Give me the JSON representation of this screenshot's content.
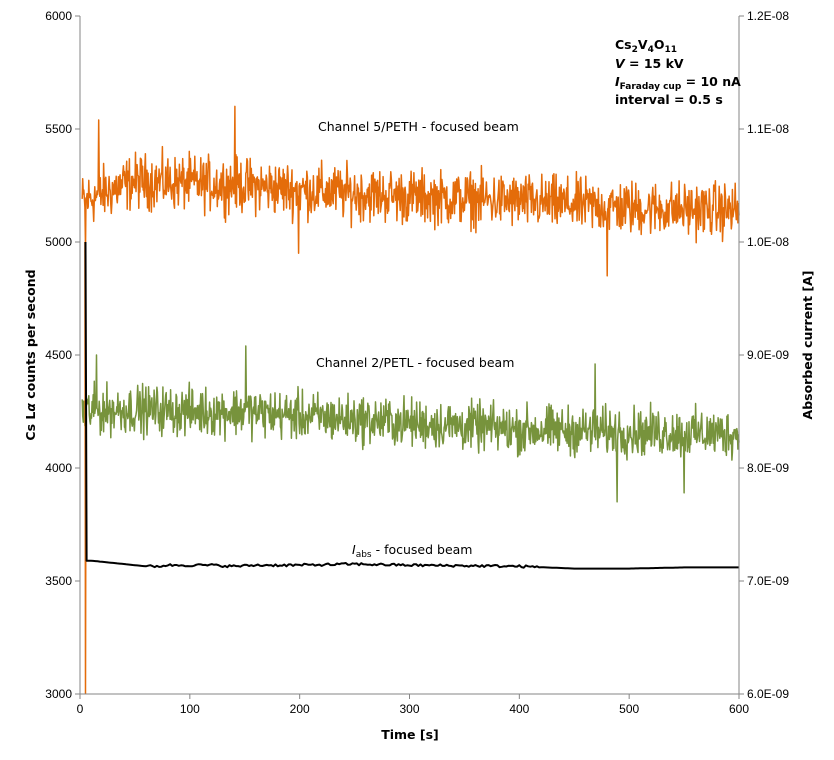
{
  "chart_data": {
    "type": "line",
    "title": "",
    "xlabel": "Time [s]",
    "ylabel_left_prefix": "Cs L",
    "ylabel_left_alpha": "α",
    "ylabel_left_suffix": " counts per second",
    "ylabel_right": "Absorbed current [A]",
    "xlim": [
      0,
      600
    ],
    "ylim_left": [
      3000,
      6000
    ],
    "ylim_right": [
      6e-09,
      1.2e-08
    ],
    "x_ticks": [
      "0",
      "100",
      "200",
      "300",
      "400",
      "500",
      "600"
    ],
    "y_left_ticks": [
      "3000",
      "3500",
      "4000",
      "4500",
      "5000",
      "5500",
      "6000"
    ],
    "y_right_ticks": [
      "6.0E-09",
      "7.0E-09",
      "8.0E-09",
      "9.0E-09",
      "1.0E-08",
      "1.1E-08",
      "1.2E-08"
    ],
    "grid": false,
    "info_box": {
      "compound_base": "Cs",
      "compound_sub1": "2",
      "compound_mid": "V",
      "compound_sub2": "4",
      "compound_o": "O",
      "compound_sub3": "11",
      "voltage_var": "V",
      "voltage_rest": " = 15 kV",
      "current_var": "I",
      "current_sub": "Faraday cup",
      "current_rest": " = 10 nA",
      "interval": "interval = 0.5 s"
    },
    "series": [
      {
        "name": "Channel 5/PETH - focused beam",
        "axis": "left",
        "color": "#e46c0a",
        "trend": [
          [
            2,
            5180
          ],
          [
            50,
            5270
          ],
          [
            100,
            5260
          ],
          [
            150,
            5250
          ],
          [
            200,
            5230
          ],
          [
            300,
            5200
          ],
          [
            400,
            5180
          ],
          [
            500,
            5150
          ],
          [
            600,
            5140
          ]
        ],
        "noise_amplitude": 90,
        "spikes": [
          [
            5,
            4970
          ],
          [
            17,
            5540
          ],
          [
            141,
            5600
          ],
          [
            199,
            4950
          ],
          [
            480,
            4850
          ]
        ]
      },
      {
        "name": "Channel 2/PETL - focused beam",
        "axis": "left",
        "color": "#77933c",
        "trend": [
          [
            2,
            4250
          ],
          [
            50,
            4260
          ],
          [
            100,
            4250
          ],
          [
            150,
            4250
          ],
          [
            200,
            4230
          ],
          [
            300,
            4200
          ],
          [
            400,
            4170
          ],
          [
            500,
            4160
          ],
          [
            600,
            4150
          ]
        ],
        "noise_amplitude": 80,
        "spikes": [
          [
            15,
            4500
          ],
          [
            151,
            4540
          ],
          [
            469,
            4460
          ],
          [
            489,
            3850
          ],
          [
            550,
            3890
          ]
        ]
      },
      {
        "name_prefix": "I",
        "name_sub": "abs",
        "name_suffix": " - focused beam",
        "axis": "right",
        "color": "#000000",
        "x": [
          5,
          6,
          8,
          10,
          20,
          40,
          60,
          70,
          80,
          100,
          120,
          140,
          160,
          200,
          250,
          300,
          400,
          450,
          500,
          550,
          600
        ],
        "y": [
          1e-08,
          7.18e-09,
          7.18e-09,
          7.18e-09,
          7.17e-09,
          7.15e-09,
          7.13e-09,
          7.13e-09,
          7.14e-09,
          7.14e-09,
          7.14e-09,
          7.13e-09,
          7.14e-09,
          7.14e-09,
          7.15e-09,
          7.14e-09,
          7.13e-09,
          7.11e-09,
          7.11e-09,
          7.12e-09,
          7.12e-09
        ]
      }
    ],
    "initial_drop": {
      "x": 5,
      "from": 5000,
      "to": 3000
    }
  }
}
